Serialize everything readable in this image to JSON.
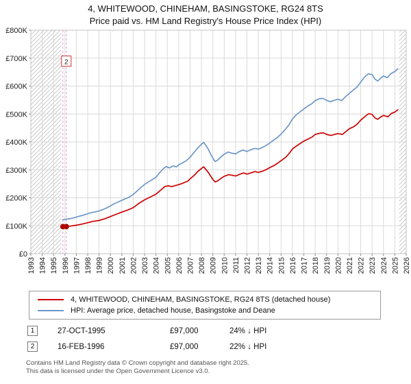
{
  "title": "4, WHITEWOOD, CHINEHAM, BASINGSTOKE, RG24 8TS",
  "subtitle": "Price paid vs. HM Land Registry's House Price Index (HPI)",
  "chart_data": {
    "type": "line",
    "x_range": [
      1993,
      2026
    ],
    "y_range": [
      0,
      800
    ],
    "y_unit": "GBP thousands",
    "x_ticks": [
      1993,
      1994,
      1995,
      1996,
      1997,
      1998,
      1999,
      2000,
      2001,
      2002,
      2003,
      2004,
      2005,
      2006,
      2007,
      2008,
      2009,
      2010,
      2011,
      2012,
      2013,
      2014,
      2015,
      2016,
      2017,
      2018,
      2019,
      2020,
      2021,
      2022,
      2023,
      2024,
      2025,
      2026
    ],
    "y_ticks": [
      {
        "value": 0,
        "label": "£0"
      },
      {
        "value": 100,
        "label": "£100K"
      },
      {
        "value": 200,
        "label": "£200K"
      },
      {
        "value": 300,
        "label": "£300K"
      },
      {
        "value": 400,
        "label": "£400K"
      },
      {
        "value": 500,
        "label": "£500K"
      },
      {
        "value": 600,
        "label": "£600K"
      },
      {
        "value": 700,
        "label": "£700K"
      },
      {
        "value": 800,
        "label": "£800K"
      }
    ],
    "grid": true,
    "legend_position": "bottom",
    "hatch_regions": [
      [
        1993,
        1995.68
      ],
      [
        2025.38,
        2026
      ]
    ],
    "transaction_lines_x": [
      1995.82,
      1996.12
    ],
    "sale_points": [
      {
        "x": 1995.82,
        "y": 97
      },
      {
        "x": 1996.12,
        "y": 97
      }
    ],
    "annotations": [
      {
        "label": "2",
        "x": 1996.12,
        "y": 688
      }
    ],
    "colors": {
      "grid": "#d9d9d9",
      "spine": "#c5c5c5",
      "hatch": "#c9c9c9",
      "transaction_line": "#e596d2",
      "sale_point": "#aa0000",
      "annotation_border": "#cc3333"
    },
    "series": [
      {
        "name": "4, WHITEWOOD, CHINEHAM, BASINGSTOKE, RG24 8TS (detached house)",
        "color": "#cc0000",
        "points": [
          [
            1995.82,
            97
          ],
          [
            1996.12,
            97
          ],
          [
            1996.5,
            99
          ],
          [
            1997,
            102
          ],
          [
            1997.5,
            106
          ],
          [
            1998,
            111
          ],
          [
            1998.5,
            116
          ],
          [
            1999,
            119
          ],
          [
            1999.5,
            125
          ],
          [
            2000,
            133
          ],
          [
            2000.5,
            141
          ],
          [
            2001,
            149
          ],
          [
            2001.5,
            156
          ],
          [
            2002,
            165
          ],
          [
            2002.5,
            180
          ],
          [
            2003,
            193
          ],
          [
            2003.5,
            203
          ],
          [
            2004,
            213
          ],
          [
            2004.4,
            227
          ],
          [
            2004.8,
            241
          ],
          [
            2005.1,
            243
          ],
          [
            2005.4,
            240
          ],
          [
            2005.7,
            244
          ],
          [
            2006,
            247
          ],
          [
            2006.4,
            253
          ],
          [
            2006.8,
            260
          ],
          [
            2007,
            268
          ],
          [
            2007.4,
            282
          ],
          [
            2007.7,
            295
          ],
          [
            2008,
            305
          ],
          [
            2008.2,
            311
          ],
          [
            2008.4,
            301
          ],
          [
            2008.6,
            291
          ],
          [
            2008.8,
            278
          ],
          [
            2009,
            266
          ],
          [
            2009.2,
            257
          ],
          [
            2009.4,
            260
          ],
          [
            2009.6,
            266
          ],
          [
            2009.8,
            272
          ],
          [
            2010,
            277
          ],
          [
            2010.4,
            283
          ],
          [
            2010.8,
            280
          ],
          [
            2011,
            278
          ],
          [
            2011.4,
            285
          ],
          [
            2011.7,
            289
          ],
          [
            2012,
            285
          ],
          [
            2012.4,
            290
          ],
          [
            2012.7,
            294
          ],
          [
            2013,
            291
          ],
          [
            2013.4,
            296
          ],
          [
            2013.7,
            301
          ],
          [
            2014,
            308
          ],
          [
            2014.4,
            316
          ],
          [
            2014.7,
            324
          ],
          [
            2015,
            333
          ],
          [
            2015.4,
            345
          ],
          [
            2015.7,
            358
          ],
          [
            2016,
            375
          ],
          [
            2016.4,
            387
          ],
          [
            2016.7,
            395
          ],
          [
            2017,
            403
          ],
          [
            2017.4,
            411
          ],
          [
            2017.7,
            417
          ],
          [
            2018,
            427
          ],
          [
            2018.4,
            431
          ],
          [
            2018.7,
            433
          ],
          [
            2019,
            427
          ],
          [
            2019.4,
            423
          ],
          [
            2019.7,
            427
          ],
          [
            2020,
            430
          ],
          [
            2020.4,
            427
          ],
          [
            2020.7,
            437
          ],
          [
            2021,
            447
          ],
          [
            2021.4,
            455
          ],
          [
            2021.7,
            464
          ],
          [
            2022,
            478
          ],
          [
            2022.4,
            492
          ],
          [
            2022.7,
            501
          ],
          [
            2023,
            499
          ],
          [
            2023.25,
            486
          ],
          [
            2023.5,
            481
          ],
          [
            2023.75,
            489
          ],
          [
            2024,
            495
          ],
          [
            2024.4,
            490
          ],
          [
            2024.7,
            502
          ],
          [
            2025,
            507
          ],
          [
            2025.3,
            516
          ]
        ]
      },
      {
        "name": "HPI: Average price, detached house, Basingstoke and Deane",
        "color": "#6d96c8",
        "points": [
          [
            1995.75,
            121
          ],
          [
            1996,
            123
          ],
          [
            1996.33,
            125
          ],
          [
            1996.67,
            127
          ],
          [
            1997,
            131
          ],
          [
            1997.33,
            135
          ],
          [
            1997.67,
            139
          ],
          [
            1998,
            143
          ],
          [
            1998.33,
            147
          ],
          [
            1998.67,
            150
          ],
          [
            1999,
            153
          ],
          [
            1999.33,
            158
          ],
          [
            1999.67,
            164
          ],
          [
            2000,
            171
          ],
          [
            2000.33,
            179
          ],
          [
            2000.67,
            185
          ],
          [
            2001,
            191
          ],
          [
            2001.33,
            197
          ],
          [
            2001.67,
            203
          ],
          [
            2002,
            212
          ],
          [
            2002.33,
            224
          ],
          [
            2002.67,
            237
          ],
          [
            2003,
            248
          ],
          [
            2003.33,
            257
          ],
          [
            2003.67,
            265
          ],
          [
            2004,
            274
          ],
          [
            2004.33,
            290
          ],
          [
            2004.67,
            305
          ],
          [
            2004.9,
            312
          ],
          [
            2005.2,
            307
          ],
          [
            2005.5,
            314
          ],
          [
            2005.8,
            311
          ],
          [
            2006,
            318
          ],
          [
            2006.33,
            325
          ],
          [
            2006.67,
            333
          ],
          [
            2007,
            345
          ],
          [
            2007.33,
            362
          ],
          [
            2007.67,
            378
          ],
          [
            2008,
            392
          ],
          [
            2008.2,
            398
          ],
          [
            2008.4,
            387
          ],
          [
            2008.6,
            374
          ],
          [
            2008.8,
            357
          ],
          [
            2009,
            342
          ],
          [
            2009.2,
            330
          ],
          [
            2009.4,
            334
          ],
          [
            2009.6,
            342
          ],
          [
            2009.8,
            350
          ],
          [
            2010,
            356
          ],
          [
            2010.33,
            364
          ],
          [
            2010.67,
            360
          ],
          [
            2011,
            357
          ],
          [
            2011.33,
            366
          ],
          [
            2011.67,
            371
          ],
          [
            2012,
            366
          ],
          [
            2012.33,
            372
          ],
          [
            2012.67,
            377
          ],
          [
            2013,
            374
          ],
          [
            2013.33,
            380
          ],
          [
            2013.67,
            387
          ],
          [
            2014,
            396
          ],
          [
            2014.33,
            406
          ],
          [
            2014.67,
            416
          ],
          [
            2015,
            428
          ],
          [
            2015.33,
            443
          ],
          [
            2015.67,
            460
          ],
          [
            2016,
            482
          ],
          [
            2016.33,
            497
          ],
          [
            2016.67,
            508
          ],
          [
            2017,
            518
          ],
          [
            2017.33,
            528
          ],
          [
            2017.67,
            536
          ],
          [
            2018,
            548
          ],
          [
            2018.33,
            554
          ],
          [
            2018.67,
            556
          ],
          [
            2019,
            549
          ],
          [
            2019.33,
            544
          ],
          [
            2019.67,
            549
          ],
          [
            2020,
            553
          ],
          [
            2020.33,
            548
          ],
          [
            2020.67,
            562
          ],
          [
            2021,
            574
          ],
          [
            2021.33,
            585
          ],
          [
            2021.67,
            596
          ],
          [
            2022,
            614
          ],
          [
            2022.33,
            632
          ],
          [
            2022.67,
            644
          ],
          [
            2023,
            641
          ],
          [
            2023.25,
            625
          ],
          [
            2023.5,
            618
          ],
          [
            2023.75,
            628
          ],
          [
            2024,
            636
          ],
          [
            2024.33,
            630
          ],
          [
            2024.67,
            645
          ],
          [
            2025,
            652
          ],
          [
            2025.3,
            663
          ]
        ]
      }
    ]
  },
  "transactions": [
    {
      "num": "1",
      "date": "27-OCT-1995",
      "price": "£97,000",
      "vs_hpi": "24% ↓ HPI"
    },
    {
      "num": "2",
      "date": "16-FEB-1996",
      "price": "£97,000",
      "vs_hpi": "22% ↓ HPI"
    }
  ],
  "footer": {
    "line1": "Contains HM Land Registry data © Crown copyright and database right 2025.",
    "line2": "This data is licensed under the Open Government Licence v3.0."
  }
}
